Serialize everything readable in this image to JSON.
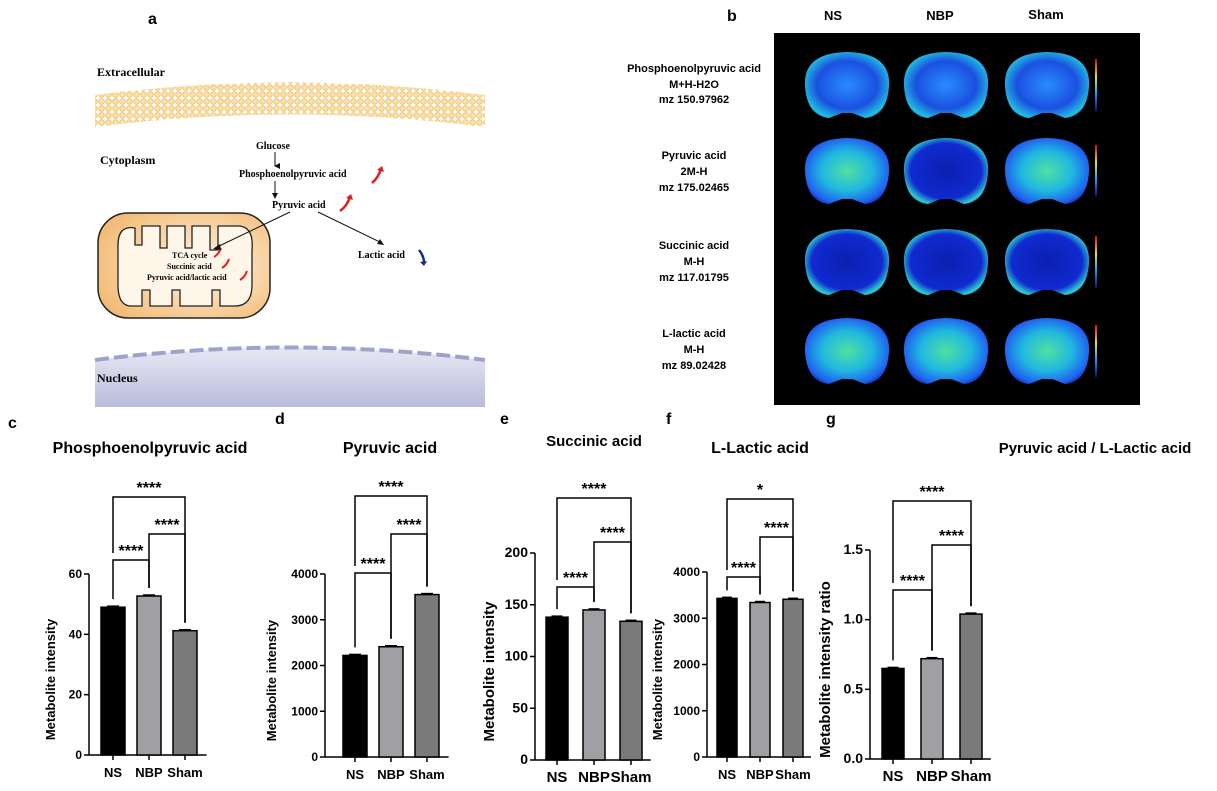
{
  "panel_a": {
    "letter": "a",
    "extracellular": "Extracellular",
    "cytoplasm": "Cytoplasm",
    "nucleus": "Nucleus",
    "glucose": "Glucose",
    "pep": "Phosphoenolpyruvic acid",
    "pyruvic": "Pyruvic acid",
    "lactic": "Lactic acid",
    "tca": "TCA cycle",
    "succinic": "Succinic acid",
    "ratio": "Pyruvic acid/lactic acid",
    "up_color": "#e02020",
    "down_color": "#1a2a8a"
  },
  "panel_b": {
    "letter": "b",
    "columns": [
      "NS",
      "NBP",
      "Sham"
    ],
    "rows": [
      {
        "name": "Phosphoenolpyruvic acid",
        "adduct": "M+H-H2O",
        "mz": "mz 150.97962"
      },
      {
        "name": "Pyruvic acid",
        "adduct": "2M-H",
        "mz": "mz 175.02465"
      },
      {
        "name": "Succinic acid",
        "adduct": "M-H",
        "mz": "mz 117.01795"
      },
      {
        "name": "L-lactic acid",
        "adduct": "M-H",
        "mz": "mz 89.02428"
      }
    ]
  },
  "chart_data": [
    {
      "letter": "c",
      "type": "bar",
      "title": "Phosphoenolpyruvic acid",
      "ylabel": "Metabolite intensity",
      "categories": [
        "NS",
        "NBP",
        "Sham"
      ],
      "values": [
        49,
        52.7,
        41.2
      ],
      "ylim": [
        0,
        60
      ],
      "yticks": [
        "0",
        "20",
        "40",
        "60"
      ],
      "colors": [
        "#000000",
        "#a0a0a4",
        "#7a7a7a"
      ],
      "significance": [
        {
          "pair": [
            "NS",
            "NBP"
          ],
          "label": "****"
        },
        {
          "pair": [
            "NBP",
            "Sham"
          ],
          "label": "****"
        },
        {
          "pair": [
            "NS",
            "Sham"
          ],
          "label": "****"
        }
      ]
    },
    {
      "letter": "d",
      "type": "bar",
      "title": "Pyruvic acid",
      "ylabel": "Metabolite intensity",
      "categories": [
        "NS",
        "NBP",
        "Sham"
      ],
      "values": [
        2220,
        2410,
        3550
      ],
      "ylim": [
        0,
        4000
      ],
      "yticks": [
        "0",
        "1000",
        "2000",
        "3000",
        "4000"
      ],
      "colors": [
        "#000000",
        "#a0a0a4",
        "#7a7a7a"
      ],
      "significance": [
        {
          "pair": [
            "NS",
            "NBP"
          ],
          "label": "****"
        },
        {
          "pair": [
            "NBP",
            "Sham"
          ],
          "label": "****"
        },
        {
          "pair": [
            "NS",
            "Sham"
          ],
          "label": "****"
        }
      ]
    },
    {
      "letter": "e",
      "type": "bar",
      "title": "Succinic acid",
      "ylabel": "Metabolite intensity",
      "categories": [
        "NS",
        "NBP",
        "Sham"
      ],
      "values": [
        138,
        145,
        134
      ],
      "ylim": [
        0,
        200
      ],
      "yticks": [
        "0",
        "50",
        "100",
        "150",
        "200"
      ],
      "colors": [
        "#000000",
        "#a0a0a4",
        "#7a7a7a"
      ],
      "significance": [
        {
          "pair": [
            "NS",
            "NBP"
          ],
          "label": "****"
        },
        {
          "pair": [
            "NBP",
            "Sham"
          ],
          "label": "****"
        },
        {
          "pair": [
            "NS",
            "Sham"
          ],
          "label": "****"
        }
      ]
    },
    {
      "letter": "f",
      "type": "bar",
      "title": "L-Lactic acid",
      "ylabel": "Metabolite intensity",
      "categories": [
        "NS",
        "NBP",
        "Sham"
      ],
      "values": [
        3430,
        3340,
        3410
      ],
      "ylim": [
        0,
        4000
      ],
      "yticks": [
        "0",
        "1000",
        "2000",
        "3000",
        "4000"
      ],
      "colors": [
        "#000000",
        "#a0a0a4",
        "#7a7a7a"
      ],
      "significance": [
        {
          "pair": [
            "NS",
            "NBP"
          ],
          "label": "****"
        },
        {
          "pair": [
            "NBP",
            "Sham"
          ],
          "label": "****"
        },
        {
          "pair": [
            "NS",
            "Sham"
          ],
          "label": "*"
        }
      ]
    },
    {
      "letter": "g",
      "type": "bar",
      "title": "Pyruvic acid / L-Lactic acid",
      "ylabel": "Metabolite intensity ratio",
      "categories": [
        "NS",
        "NBP",
        "Sham"
      ],
      "values": [
        0.65,
        0.72,
        1.04
      ],
      "ylim": [
        0,
        1.5
      ],
      "yticks": [
        "0.0",
        "0.5",
        "1.0",
        "1.5"
      ],
      "colors": [
        "#000000",
        "#a0a0a4",
        "#7a7a7a"
      ],
      "significance": [
        {
          "pair": [
            "NS",
            "NBP"
          ],
          "label": "****"
        },
        {
          "pair": [
            "NBP",
            "Sham"
          ],
          "label": "****"
        },
        {
          "pair": [
            "NS",
            "Sham"
          ],
          "label": "****"
        }
      ]
    }
  ]
}
